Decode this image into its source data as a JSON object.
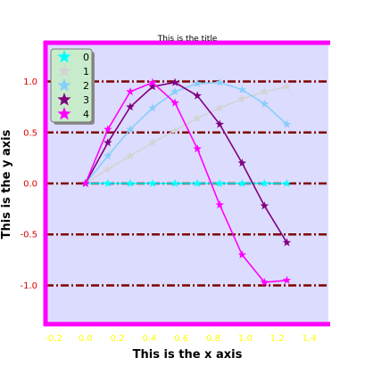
{
  "chart_data": {
    "type": "line",
    "title": "This is the title",
    "xlabel": "This is the x axis",
    "ylabel": "This is the y axis",
    "xlim": [
      -0.25,
      1.52
    ],
    "ylim": [
      -1.38,
      1.38
    ],
    "xticks": [
      -0.2,
      0.0,
      0.2,
      0.4,
      0.6,
      0.8,
      1.0,
      1.2,
      1.4
    ],
    "xtick_labels": [
      "-0.2",
      "0.0",
      "0.2",
      "0.4",
      "0.6",
      "0.8",
      "1.0",
      "1.2",
      "1.4"
    ],
    "yticks": [
      -1.0,
      -0.5,
      0.0,
      0.5,
      1.0
    ],
    "ytick_labels": [
      "-1.0",
      "-0.5",
      "0.0",
      "0.5",
      "1.0"
    ],
    "grid": "horizontal dash-dot lines",
    "legend_position": "top-left",
    "marker": "star",
    "colors": {
      "plot_background": "#dcdcff",
      "frame": "#ff00ff",
      "grid": "#800000",
      "legend_background": "#c8eccb",
      "xtick_label": "#ffff00",
      "ytick_label": "#dd0000"
    },
    "series": [
      {
        "name": "0",
        "color": "#00ffff",
        "x": [
          0.0,
          0.14,
          0.28,
          0.42,
          0.56,
          0.7,
          0.84,
          0.98,
          1.12,
          1.26
        ],
        "y": [
          0.0,
          0.0,
          0.0,
          0.0,
          0.0,
          0.0,
          0.0,
          0.0,
          0.0,
          0.0
        ]
      },
      {
        "name": "1",
        "color": "#d3d3d3",
        "x": [
          0.0,
          0.14,
          0.28,
          0.42,
          0.56,
          0.7,
          0.84,
          0.98,
          1.12,
          1.26
        ],
        "y": [
          0.0,
          0.14,
          0.27,
          0.4,
          0.52,
          0.64,
          0.74,
          0.83,
          0.9,
          0.95
        ]
      },
      {
        "name": "2",
        "color": "#87cefa",
        "x": [
          0.0,
          0.14,
          0.28,
          0.42,
          0.56,
          0.7,
          0.84,
          0.98,
          1.12,
          1.26
        ],
        "y": [
          0.0,
          0.27,
          0.53,
          0.74,
          0.9,
          0.98,
          0.99,
          0.92,
          0.78,
          0.58
        ]
      },
      {
        "name": "3",
        "color": "#800080",
        "x": [
          0.0,
          0.14,
          0.28,
          0.42,
          0.56,
          0.7,
          0.84,
          0.98,
          1.12,
          1.26
        ],
        "y": [
          0.0,
          0.4,
          0.75,
          0.95,
          0.99,
          0.86,
          0.58,
          0.2,
          -0.22,
          -0.58
        ]
      },
      {
        "name": "4",
        "color": "#ff00ff",
        "x": [
          0.0,
          0.14,
          0.28,
          0.42,
          0.56,
          0.7,
          0.84,
          0.98,
          1.12,
          1.26
        ],
        "y": [
          0.0,
          0.53,
          0.9,
          0.99,
          0.79,
          0.34,
          -0.21,
          -0.7,
          -0.97,
          -0.95
        ]
      }
    ]
  }
}
